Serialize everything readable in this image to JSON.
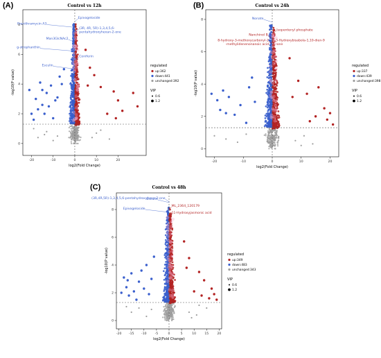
{
  "panels": [
    {
      "label": "(A)",
      "chart_data": {
        "type": "scatter",
        "title": "Control vs 12h",
        "xlabel": "log2(Fold Change)",
        "ylabel": "-log10(P value)",
        "xticks": [
          -20,
          -10,
          0,
          10,
          20
        ],
        "yticks": [
          0,
          2,
          4,
          6,
          8
        ],
        "xlim": [
          -24,
          33
        ],
        "ylim": [
          -0.8,
          9
        ],
        "threshold_y": 1.3,
        "threshold_x": 0,
        "grid": false,
        "legend": {
          "title": "regulated",
          "entries": [
            "up:362",
            "down:441",
            "unchanged:392"
          ],
          "colors": [
            "#b22222",
            "#3a5fcd",
            "#9e9e9e"
          ],
          "vip_title": "VIP",
          "vip_entries": [
            "0.6",
            "1.2"
          ],
          "placement": "right"
        },
        "annotations": [
          {
            "text": "Epivogeloside",
            "x": 1.5,
            "y": 8.4,
            "color": "#3a5fcd",
            "lines": [
              "Epivogeloside"
            ]
          },
          {
            "text": "Prenithramycin A3",
            "x": -13,
            "y": 8.0,
            "color": "#3a5fcd",
            "lines": [
              "Prenithramycin A3"
            ]
          },
          {
            "text": "(3R,4R,5R)-1,3,4,5,6-pentahydroxyhexan-2-one",
            "x": 2,
            "y": 7.7,
            "color": "#3a5fcd",
            "lines": [
              "(3R, 4R, 5R)-1,3,4,5,6-",
              "pentahydroxyhexan-2-one"
            ]
          },
          {
            "text": "Man3GlcNAc2",
            "x": -3,
            "y": 7.0,
            "color": "#3a5fcd",
            "lines": [
              "Man3GlcNAc2"
            ]
          },
          {
            "text": "g-strophanthin",
            "x": -16,
            "y": 6.4,
            "color": "#3a5fcd",
            "lines": [
              "g-strophanthin"
            ]
          },
          {
            "text": "Coniferin",
            "x": 2,
            "y": 5.8,
            "color": "#3a5fcd",
            "lines": [
              "Coniferin"
            ]
          },
          {
            "text": "Esculin",
            "x": -10,
            "y": 5.2,
            "color": "#3a5fcd",
            "lines": [
              "Esculin"
            ]
          }
        ],
        "outliers": {
          "down": [
            [
              -21,
              3.6
            ],
            [
              -18,
              3.0
            ],
            [
              -16,
              4.1
            ],
            [
              -15,
              2.6
            ],
            [
              -14,
              2.0
            ],
            [
              -13,
              3.4
            ],
            [
              -12,
              2.5
            ],
            [
              -11,
              3.9
            ],
            [
              -10,
              1.7
            ],
            [
              -9,
              2.9
            ],
            [
              -19,
              1.6
            ],
            [
              -17,
              2.3
            ],
            [
              -8,
              3.1
            ],
            [
              -7,
              4.5
            ],
            [
              -6,
              4.0
            ],
            [
              -5,
              5.0
            ],
            [
              -15,
              3.6
            ],
            [
              -20,
              2.0
            ]
          ],
          "up": [
            [
              18,
              3.5
            ],
            [
              20,
              2.9
            ],
            [
              22,
              2.2
            ],
            [
              27,
              3.4
            ],
            [
              29,
              2.5
            ],
            [
              15,
              2.0
            ],
            [
              12,
              3.8
            ],
            [
              9,
              4.6
            ],
            [
              7,
              5.1
            ],
            [
              6,
              3.9
            ],
            [
              5,
              6.3
            ],
            [
              19,
              1.7
            ]
          ],
          "unchanged": [
            [
              -17,
              0.4
            ],
            [
              -13,
              0.8
            ],
            [
              -10,
              0.2
            ],
            [
              -8,
              0.5
            ],
            [
              8,
              0.4
            ],
            [
              12,
              0.9
            ],
            [
              16,
              0.3
            ],
            [
              -19,
              1.0
            ],
            [
              -14,
              0.6
            ],
            [
              10,
              0.7
            ]
          ]
        }
      }
    },
    {
      "label": "(B)",
      "chart_data": {
        "type": "scatter",
        "title": "Control vs 24h",
        "xlabel": "log2(Fold Change)",
        "ylabel": "-log10(P value)",
        "xticks": [
          -20,
          -10,
          0,
          10,
          20
        ],
        "yticks": [
          0,
          2,
          4,
          6,
          8
        ],
        "xlim": [
          -23,
          23
        ],
        "ylim": [
          -0.5,
          8.6
        ],
        "threshold_y": 1.3,
        "threshold_x": 0,
        "grid": false,
        "legend": {
          "title": "regulated",
          "entries": [
            "up:337",
            "down:439",
            "unchanged:398"
          ],
          "colors": [
            "#b22222",
            "#3a5fcd",
            "#9e9e9e"
          ],
          "vip_title": "VIP",
          "vip_entries": [
            "0.6",
            "1.2"
          ],
          "placement": "right"
        },
        "annotations": [
          {
            "text": "Nonate",
            "x": -3,
            "y": 8.0,
            "color": "#3a5fcd",
            "lines": [
              "Nonate"
            ]
          },
          {
            "text": "Isopentenyl phosphate",
            "x": 1.5,
            "y": 7.3,
            "color": "#b22222",
            "lines": [
              "Isopentenyl phosphate"
            ]
          },
          {
            "text": "Nanchinol B",
            "x": -1.5,
            "y": 7.0,
            "color": "#b22222",
            "lines": [
              "Nanchinol B"
            ]
          },
          {
            "text": "8-hydroxy-3-methoxycarbonyl-2-methylidenenonanoic acid",
            "x": -1.2,
            "y": 6.65,
            "color": "#b22222",
            "lines": [
              "8-hydroxy-3-methoxycarbonyl-2",
              "-methylidenenonanoic acid"
            ]
          },
          {
            "text": "3-Hydroxybisabola-1,10-dien-9-one",
            "x": 1.2,
            "y": 6.65,
            "color": "#b22222",
            "lines": [
              "3-Hydroxybisabola-1,10-dien-9",
              "-one"
            ]
          }
        ],
        "outliers": {
          "down": [
            [
              -21,
              3.4
            ],
            [
              -19,
              3.0
            ],
            [
              -17,
              3.6
            ],
            [
              -16,
              2.2
            ],
            [
              -15,
              3.2
            ],
            [
              -13,
              2.1
            ],
            [
              -11,
              2.7
            ],
            [
              -9,
              1.6
            ],
            [
              -8,
              3.8
            ],
            [
              -7,
              4.4
            ],
            [
              -6,
              2.9
            ],
            [
              -18,
              2.4
            ]
          ],
          "up": [
            [
              13,
              1.7
            ],
            [
              15,
              2.0
            ],
            [
              16,
              3.8
            ],
            [
              18,
              2.5
            ],
            [
              19,
              1.8
            ],
            [
              20,
              2.2
            ],
            [
              21,
              1.5
            ],
            [
              12,
              3.4
            ],
            [
              9,
              4.2
            ],
            [
              7,
              3.2
            ],
            [
              6,
              5.6
            ]
          ],
          "unchanged": [
            [
              -16,
              0.6
            ],
            [
              -12,
              0.4
            ],
            [
              -9,
              0.9
            ],
            [
              8,
              0.5
            ],
            [
              11,
              0.8
            ],
            [
              14,
              0.3
            ],
            [
              -20,
              0.8
            ],
            [
              10,
              0.2
            ]
          ]
        }
      }
    },
    {
      "label": "(C)",
      "chart_data": {
        "type": "scatter",
        "title": "Control vs 48h",
        "xlabel": "log2(Fold Change)",
        "ylabel": "-log10(P value)",
        "xticks": [
          -20,
          -15,
          -10,
          -5,
          0,
          5,
          10,
          15,
          20
        ],
        "yticks": [
          0,
          2,
          4,
          6,
          8
        ],
        "xlim": [
          -21,
          21
        ],
        "ylim": [
          -0.6,
          9.2
        ],
        "threshold_y": 1.3,
        "threshold_x": 0,
        "grid": false,
        "legend": {
          "title": "regulated",
          "entries": [
            "up:349",
            "down:483",
            "unchanged:343"
          ],
          "colors": [
            "#b22222",
            "#3a5fcd",
            "#9e9e9e"
          ],
          "vip_title": "VIP",
          "vip_entries": [
            "0.6",
            "1.2"
          ],
          "placement": "right"
        },
        "annotations": [
          {
            "text": "Esculin",
            "x": -4.5,
            "y": 8.7,
            "color": "#3a5fcd",
            "lines": [
              "Esculin"
            ]
          },
          {
            "text": "(3R,4R,5R)-1,3,4,5,6-pentahydroxyhexa-2-one",
            "x": -1.5,
            "y": 8.75,
            "color": "#3a5fcd",
            "lines": [
              "(3R,4R,5R)-1,3,4,5,6-pentahydroxyhexa-2-one"
            ]
          },
          {
            "text": "Epivogeloside",
            "x": -9.5,
            "y": 8.0,
            "color": "#3a5fcd",
            "lines": [
              "Epivogeloside"
            ]
          },
          {
            "text": "ML_2364_120179",
            "x": 1.0,
            "y": 8.2,
            "color": "#b22222",
            "lines": [
              "ML_2364_120179"
            ]
          },
          {
            "text": "11-Hydroxyjasmonic acid",
            "x": 1.0,
            "y": 7.7,
            "color": "#b22222",
            "lines": [
              "11-Hydroxyjasmonic acid"
            ]
          }
        ],
        "outliers": {
          "down": [
            [
              -18,
              3.1
            ],
            [
              -17,
              2.4
            ],
            [
              -16,
              1.8
            ],
            [
              -15,
              3.4
            ],
            [
              -14,
              2.1
            ],
            [
              -13,
              1.5
            ],
            [
              -12,
              2.8
            ],
            [
              -11,
              3.6
            ],
            [
              -10,
              2.3
            ],
            [
              -9,
              4.0
            ],
            [
              -8,
              1.9
            ],
            [
              -7,
              3.0
            ],
            [
              -6,
              4.6
            ],
            [
              -19,
              2.0
            ],
            [
              -16.5,
              2.9
            ]
          ],
          "up": [
            [
              10,
              2.1
            ],
            [
              12,
              3.5
            ],
            [
              13,
              1.8
            ],
            [
              14,
              2.9
            ],
            [
              16,
              1.6
            ],
            [
              17,
              2.3
            ],
            [
              18,
              1.9
            ],
            [
              19,
              1.5
            ],
            [
              8,
              4.5
            ],
            [
              7,
              3.8
            ],
            [
              6,
              5.7
            ]
          ],
          "unchanged": [
            [
              -15,
              0.6
            ],
            [
              -12,
              0.9
            ],
            [
              -9,
              0.3
            ],
            [
              -7,
              0.8
            ],
            [
              8,
              0.6
            ],
            [
              11,
              0.4
            ],
            [
              15,
              0.9
            ],
            [
              -17,
              1.0
            ],
            [
              12,
              1.1
            ],
            [
              9,
              0.2
            ]
          ]
        }
      }
    }
  ]
}
